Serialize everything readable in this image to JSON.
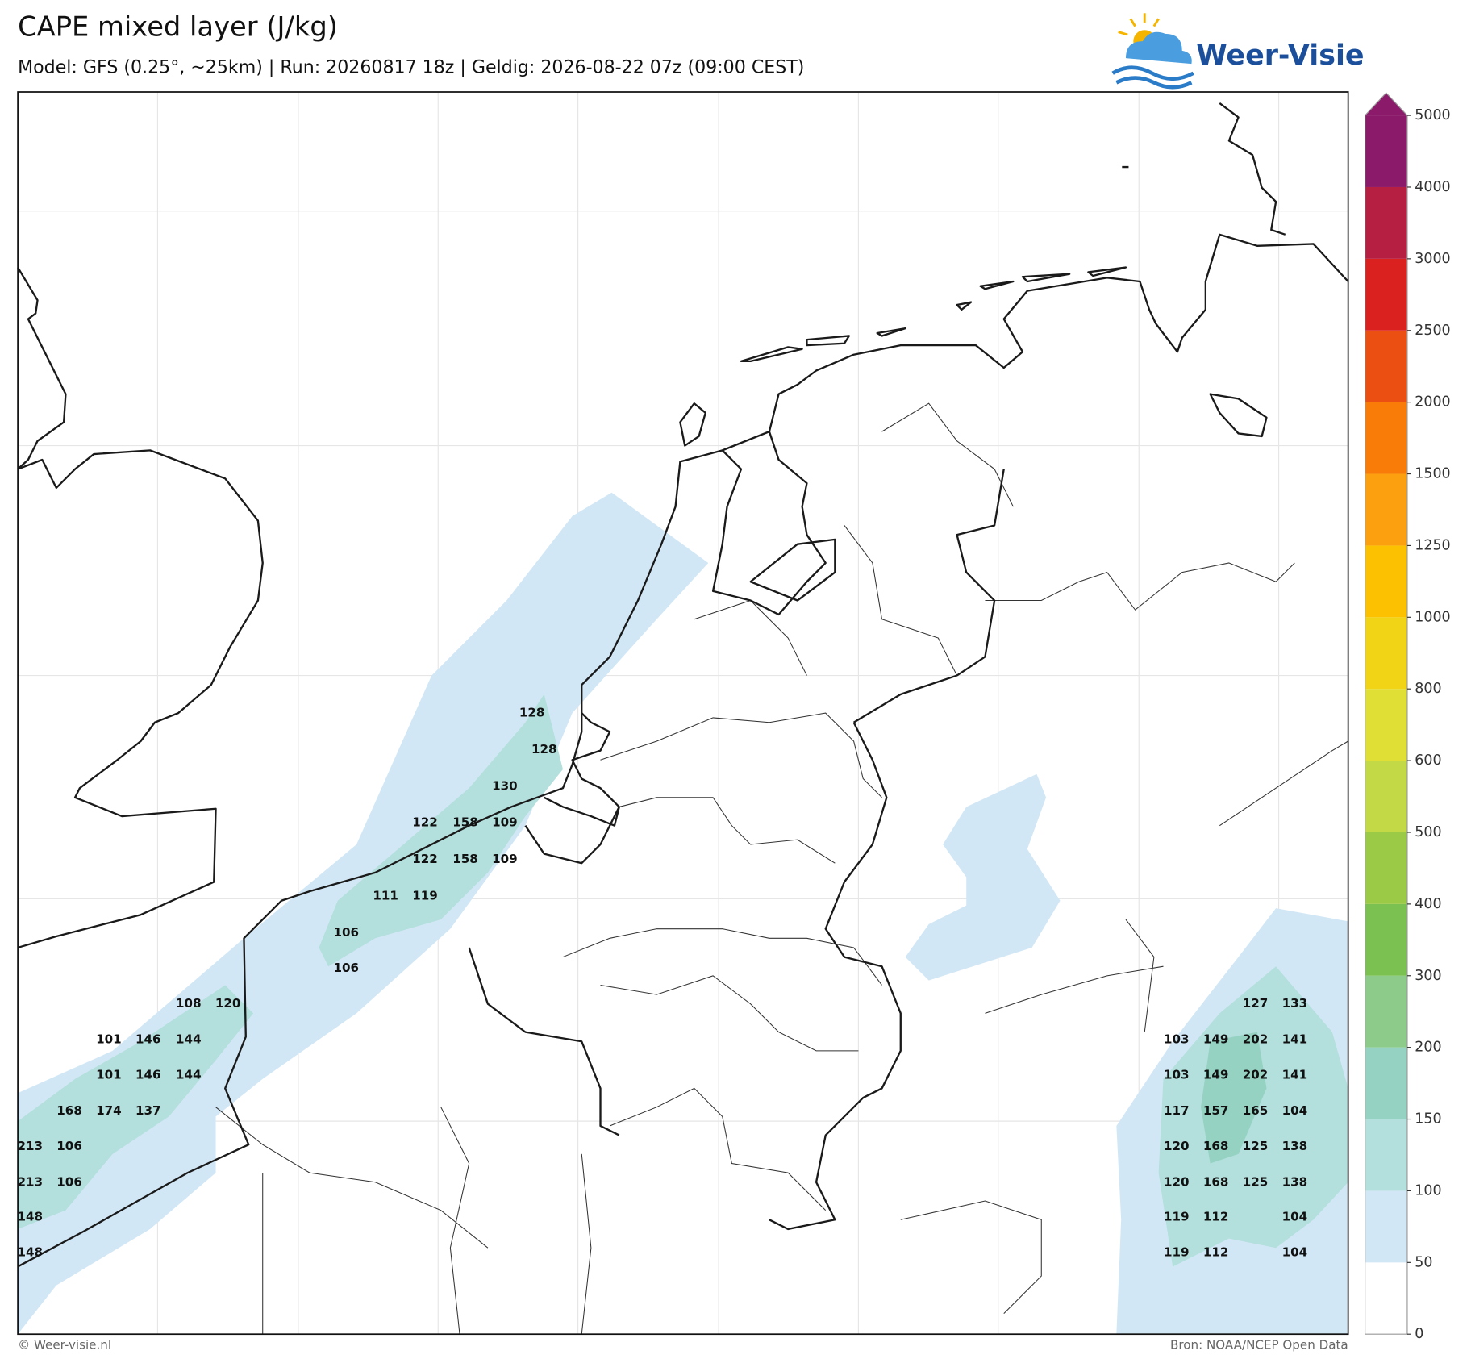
{
  "header": {
    "title": "CAPE mixed layer (J/kg)",
    "subtitle": "Model: GFS (0.25°, ~25km)  |  Run: 20260817 18z  |  Geldig: 2026-08-22 07z (09:00 CEST)"
  },
  "logo": {
    "text": "Weer-Visie"
  },
  "colorbar": {
    "ticks": [
      0,
      50,
      100,
      150,
      200,
      300,
      400,
      500,
      600,
      800,
      1000,
      1250,
      1500,
      2000,
      2500,
      3000,
      4000,
      5000
    ],
    "colors": [
      "#ffffff",
      "#d2e7f5",
      "#b3dfdc",
      "#95d2c2",
      "#8ccb8a",
      "#7bc151",
      "#9bca46",
      "#c3d946",
      "#dfdf36",
      "#f2d417",
      "#fcc100",
      "#fca010",
      "#f97c09",
      "#eb5012",
      "#db2020",
      "#b61f42",
      "#8b1a6b"
    ]
  },
  "map_labels": [
    128,
    128,
    130,
    122,
    158,
    109,
    122,
    158,
    109,
    111,
    119,
    106,
    106,
    108,
    120,
    101,
    146,
    144,
    101,
    146,
    144,
    168,
    174,
    137,
    213,
    106,
    213,
    106,
    148,
    148,
    127,
    133,
    103,
    149,
    202,
    141,
    103,
    149,
    202,
    141,
    117,
    157,
    165,
    104,
    120,
    168,
    125,
    138,
    120,
    168,
    125,
    138,
    119,
    112,
    104,
    119,
    112,
    104
  ],
  "footer": {
    "left": "© Weer-visie.nl",
    "right": "Bron: NOAA/NCEP Open Data"
  }
}
